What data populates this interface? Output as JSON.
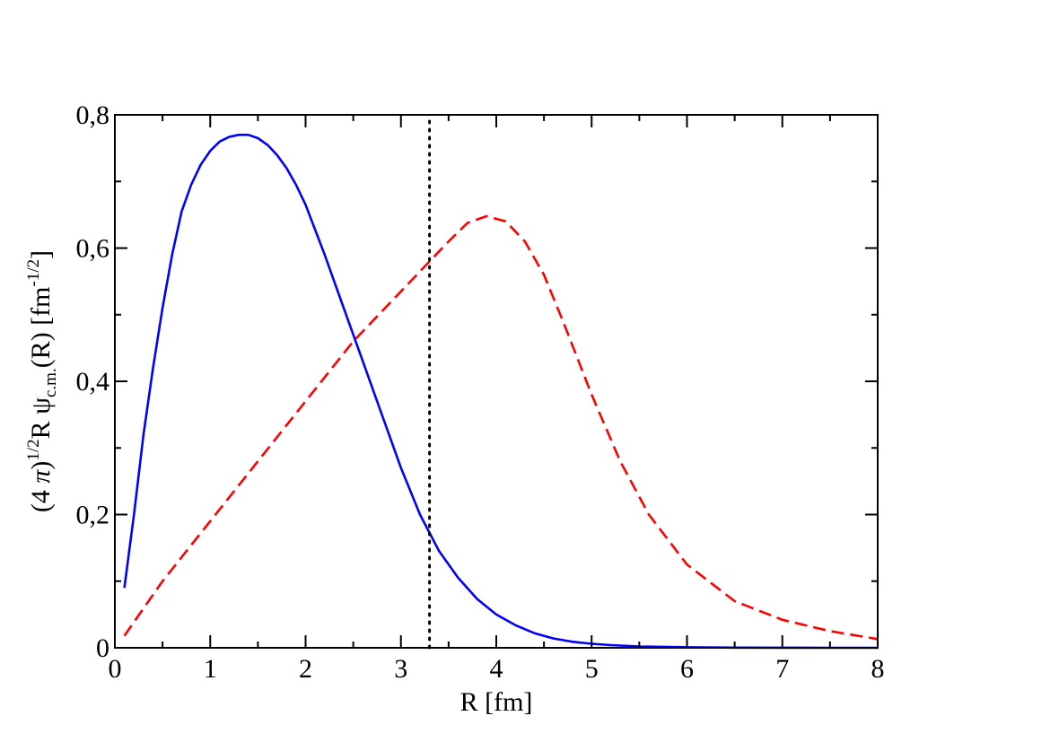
{
  "chart_data": {
    "type": "line",
    "xlabel": "R [fm]",
    "ylabel": {
      "prefix": "(4 ",
      "pi": "π",
      "close": ")",
      "exp1": "1/2",
      "mid": "R ",
      "psi": "ψ",
      "psi_sub": "c.m.",
      "arg": "(R) [fm",
      "exp2": "-1/2",
      "end": "]"
    },
    "xlim": [
      0,
      8
    ],
    "ylim": [
      0,
      0.8
    ],
    "x_ticks": [
      {
        "value": 0,
        "label": "0"
      },
      {
        "value": 1,
        "label": "1"
      },
      {
        "value": 2,
        "label": "2"
      },
      {
        "value": 3,
        "label": "3"
      },
      {
        "value": 4,
        "label": "4"
      },
      {
        "value": 5,
        "label": "5"
      },
      {
        "value": 6,
        "label": "6"
      },
      {
        "value": 7,
        "label": "7"
      },
      {
        "value": 8,
        "label": "8"
      }
    ],
    "y_ticks": [
      {
        "value": 0,
        "label": "0"
      },
      {
        "value": 0.2,
        "label": "0,2"
      },
      {
        "value": 0.4,
        "label": "0,4"
      },
      {
        "value": 0.6,
        "label": "0,6"
      },
      {
        "value": 0.8,
        "label": "0,8"
      }
    ],
    "grid": false,
    "series": [
      {
        "color": "#0000ff",
        "style": "solid",
        "x": [
          0.1,
          0.2,
          0.3,
          0.4,
          0.5,
          0.6,
          0.7,
          0.8,
          0.9,
          1.0,
          1.1,
          1.2,
          1.3,
          1.4,
          1.5,
          1.6,
          1.7,
          1.8,
          1.9,
          2.0,
          2.2,
          2.4,
          2.6,
          2.8,
          3.0,
          3.2,
          3.4,
          3.6,
          3.8,
          4.0,
          4.2,
          4.4,
          4.6,
          4.8,
          5.0,
          5.2,
          5.5,
          6.0,
          6.5,
          7.0,
          7.5,
          8.0
        ],
        "y": [
          0.09,
          0.2,
          0.32,
          0.42,
          0.51,
          0.59,
          0.655,
          0.695,
          0.725,
          0.746,
          0.76,
          0.767,
          0.77,
          0.77,
          0.765,
          0.755,
          0.74,
          0.72,
          0.695,
          0.665,
          0.59,
          0.51,
          0.43,
          0.35,
          0.27,
          0.2,
          0.145,
          0.105,
          0.073,
          0.05,
          0.034,
          0.022,
          0.014,
          0.009,
          0.006,
          0.004,
          0.002,
          0.0008,
          0.0003,
          0.0001,
          0.0,
          0.0
        ]
      },
      {
        "color": "#ff0000",
        "style": "dashed",
        "x": [
          0.1,
          0.5,
          1.0,
          1.5,
          2.0,
          2.5,
          3.0,
          3.3,
          3.5,
          3.7,
          3.9,
          4.1,
          4.3,
          4.5,
          4.7,
          5.0,
          5.3,
          5.6,
          6.0,
          6.5,
          7.0,
          7.5,
          8.0
        ],
        "y": [
          0.018,
          0.1,
          0.19,
          0.28,
          0.37,
          0.46,
          0.535,
          0.58,
          0.61,
          0.638,
          0.648,
          0.64,
          0.61,
          0.56,
          0.49,
          0.38,
          0.28,
          0.2,
          0.125,
          0.07,
          0.042,
          0.025,
          0.013
        ]
      },
      {
        "color": "#000000",
        "style": "dotted",
        "x": [
          3.3,
          3.3
        ],
        "y": [
          0.0,
          0.8
        ]
      }
    ]
  }
}
